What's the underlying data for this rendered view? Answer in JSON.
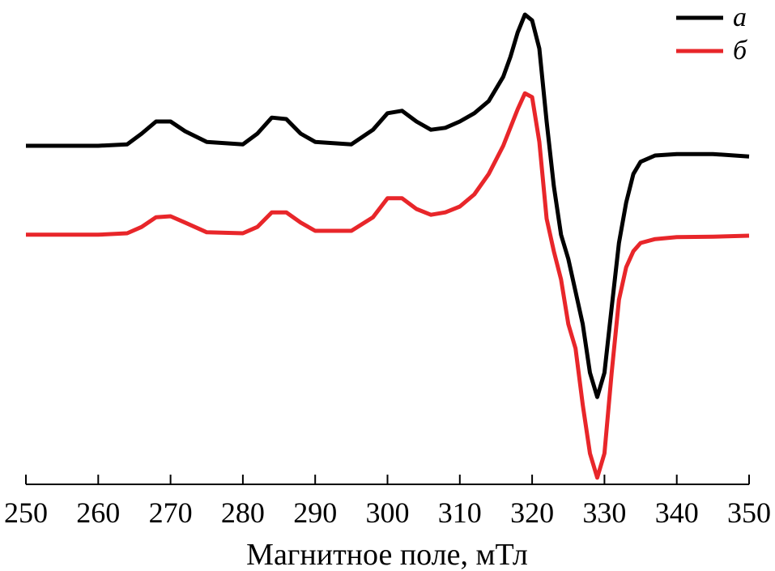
{
  "chart_data": {
    "type": "line",
    "xlabel": "Магнитное поле, мТл",
    "xlim": [
      250,
      350
    ],
    "xticks": [
      250,
      260,
      270,
      280,
      290,
      300,
      310,
      320,
      330,
      340,
      350
    ],
    "ylim": [
      0,
      100
    ],
    "grid": false,
    "legend": "upper right",
    "series": [
      {
        "name": "а",
        "color": "#000000",
        "x": [
          250,
          255,
          260,
          264,
          266,
          268,
          270,
          272,
          275,
          280,
          282,
          284,
          286,
          288,
          290,
          295,
          298,
          300,
          302,
          304,
          306,
          308,
          310,
          312,
          314,
          316,
          317,
          318,
          319,
          320,
          321,
          322,
          323,
          324,
          325,
          326,
          327,
          328,
          329,
          330,
          331,
          332,
          333,
          334,
          335,
          337,
          340,
          345,
          350
        ],
        "values": [
          70,
          70,
          70,
          70.3,
          72.5,
          75,
          75,
          73,
          70.8,
          70.3,
          72.5,
          75.8,
          75.5,
          72.5,
          70.8,
          70.3,
          73.3,
          76.7,
          77.2,
          75,
          73.3,
          73.7,
          75,
          76.7,
          79.2,
          84.2,
          88.3,
          93.3,
          97,
          95.8,
          90,
          75,
          61.7,
          51.7,
          46.7,
          40,
          33.3,
          23.3,
          18.3,
          23.3,
          36.7,
          50,
          58.3,
          64.2,
          66.7,
          68,
          68.3,
          68.3,
          67.8
        ]
      },
      {
        "name": "б",
        "color": "#e8262a",
        "x": [
          250,
          260,
          264,
          266,
          268,
          270,
          272,
          275,
          280,
          282,
          284,
          286,
          288,
          290,
          295,
          298,
          300,
          302,
          304,
          306,
          308,
          310,
          312,
          314,
          316,
          318,
          319,
          320,
          321,
          322,
          323,
          324,
          325,
          326,
          327,
          328,
          329,
          330,
          331,
          332,
          333,
          334,
          335,
          337,
          340,
          345,
          350
        ],
        "values": [
          51.7,
          51.7,
          52,
          53.3,
          55.3,
          55.5,
          54.2,
          52.2,
          52,
          53.3,
          56.3,
          56.3,
          54.2,
          52.5,
          52.5,
          55.3,
          59.2,
          59.2,
          57,
          55.8,
          56.3,
          57.5,
          60,
          64.2,
          70,
          77.5,
          80.8,
          80,
          70.8,
          55,
          48.3,
          42.5,
          33.3,
          28.3,
          16.7,
          6.7,
          1.7,
          6.7,
          23.3,
          38.3,
          45,
          48.3,
          50,
          50.8,
          51.2,
          51.3,
          51.5
        ]
      }
    ]
  }
}
